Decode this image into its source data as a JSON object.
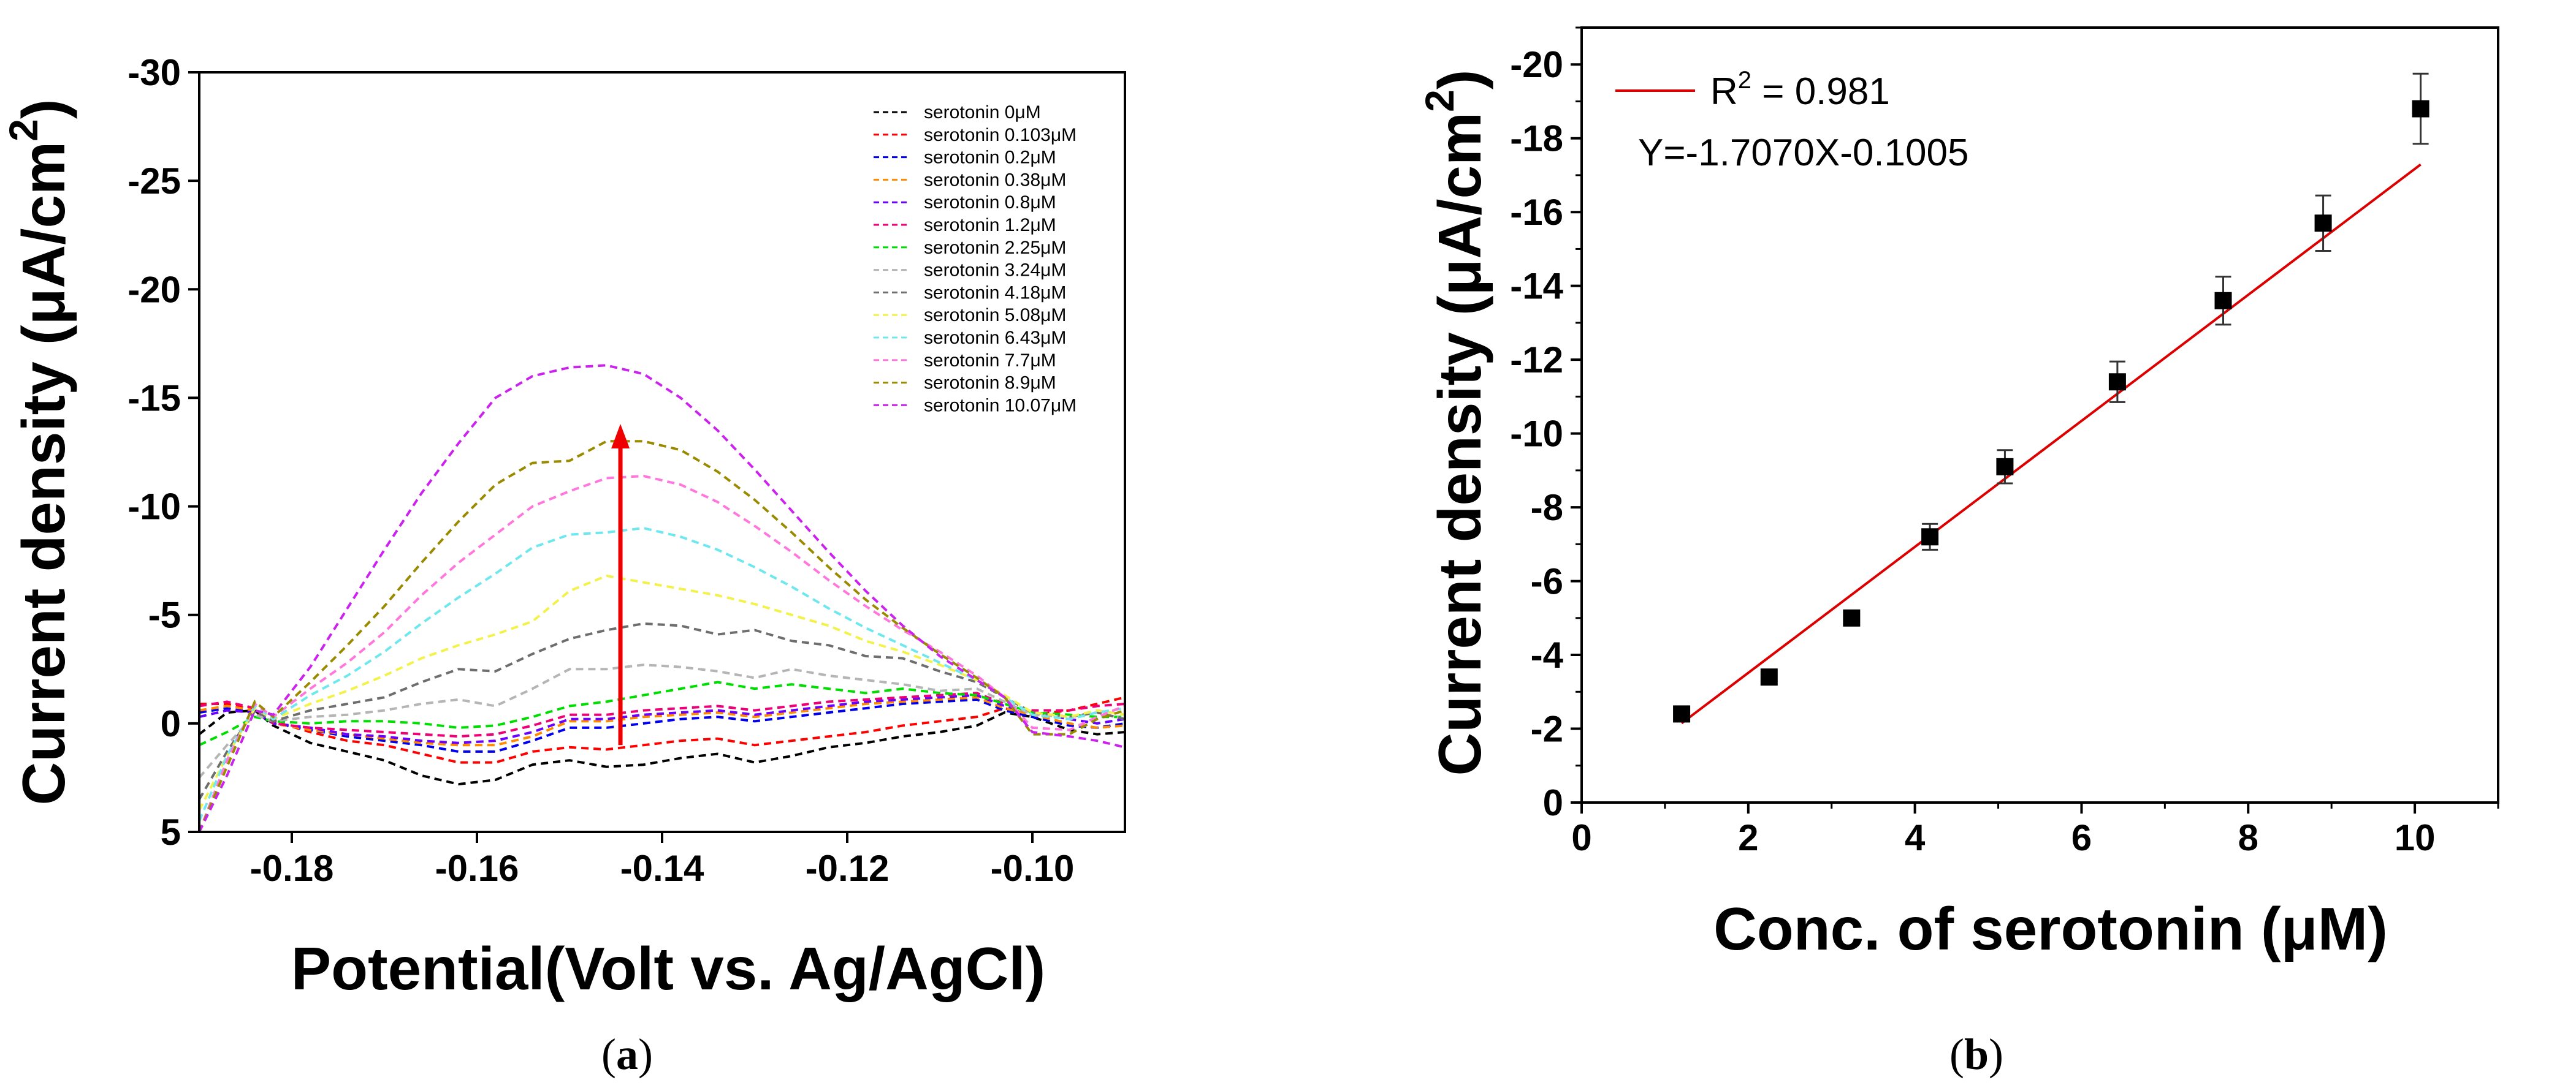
{
  "chart_data": [
    {
      "panel": "a",
      "type": "line",
      "caption_letter": "a",
      "caption": "(a)",
      "xlabel": "Potential(Volt vs. Ag/AgCl)",
      "ylabel": "Current density (μA/cm",
      "ylabel_sup": "2",
      "ylabel_close": ")",
      "xlim": [
        -0.19,
        -0.09
      ],
      "ylim": [
        5,
        -30
      ],
      "y_inverted": true,
      "xticks": [
        -0.18,
        -0.16,
        -0.14,
        -0.12,
        -0.1
      ],
      "xtick_labels": [
        "-0.18",
        "-0.16",
        "-0.14",
        "-0.12",
        "-0.10"
      ],
      "yticks": [
        -30,
        -25,
        -20,
        -15,
        -10,
        -5,
        0,
        5
      ],
      "ytick_labels": [
        "-30",
        "-25",
        "-20",
        "-15",
        "-10",
        "-5",
        "0",
        "5"
      ],
      "legend_position": "top-right",
      "arrow": {
        "x": -0.1445,
        "from": 1,
        "to": -13.8,
        "color": "#ee0000"
      },
      "x": [
        -0.19,
        -0.187,
        -0.184,
        -0.182,
        -0.178,
        -0.174,
        -0.17,
        -0.166,
        -0.162,
        -0.158,
        -0.154,
        -0.15,
        -0.146,
        -0.142,
        -0.138,
        -0.134,
        -0.13,
        -0.126,
        -0.122,
        -0.118,
        -0.114,
        -0.11,
        -0.106,
        -0.103,
        -0.1,
        -0.096,
        -0.093,
        -0.09
      ],
      "series": [
        {
          "name": "serotonin 0μM",
          "color": "#000000",
          "values": [
            0.5,
            -0.5,
            -0.6,
            0.1,
            0.9,
            1.3,
            1.7,
            2.4,
            2.8,
            2.6,
            1.9,
            1.7,
            2.0,
            1.9,
            1.6,
            1.4,
            1.8,
            1.5,
            1.1,
            0.9,
            0.6,
            0.4,
            0.1,
            -0.5,
            -0.3,
            0.3,
            0.5,
            0.4
          ]
        },
        {
          "name": "serotonin 0.103μM",
          "color": "#ff0000",
          "values": [
            -0.9,
            -0.9,
            -0.6,
            -0.1,
            0.4,
            0.8,
            1.0,
            1.4,
            1.8,
            1.8,
            1.3,
            1.1,
            1.2,
            1.0,
            0.8,
            0.7,
            1.0,
            0.8,
            0.6,
            0.4,
            0.1,
            -0.1,
            -0.3,
            -0.7,
            -0.4,
            -0.6,
            -0.9,
            -1.2
          ]
        },
        {
          "name": "serotonin 0.2μM",
          "color": "#0000ee",
          "values": [
            -0.5,
            -0.7,
            -0.5,
            0.0,
            0.3,
            0.6,
            0.8,
            1.0,
            1.3,
            1.3,
            0.8,
            0.2,
            0.2,
            0.0,
            -0.2,
            -0.3,
            -0.1,
            -0.3,
            -0.5,
            -0.7,
            -0.9,
            -1.0,
            -1.1,
            -0.6,
            -0.3,
            0.1,
            0.2,
            0.0
          ]
        },
        {
          "name": "serotonin 0.38μM",
          "color": "#ff8c00",
          "values": [
            -0.6,
            -0.8,
            -0.6,
            0.0,
            0.3,
            0.5,
            0.7,
            0.9,
            1.0,
            1.0,
            0.6,
            -0.1,
            -0.1,
            -0.3,
            -0.4,
            -0.5,
            -0.3,
            -0.5,
            -0.7,
            -0.9,
            -1.0,
            -1.1,
            -1.2,
            -0.7,
            -0.4,
            0.0,
            0.2,
            0.1
          ]
        },
        {
          "name": "serotonin 0.8μM",
          "color": "#6a00ff",
          "values": [
            -0.3,
            -0.6,
            -0.5,
            0.0,
            0.2,
            0.5,
            0.6,
            0.8,
            0.9,
            0.8,
            0.4,
            -0.2,
            -0.2,
            -0.4,
            -0.5,
            -0.6,
            -0.4,
            -0.6,
            -0.8,
            -1.0,
            -1.1,
            -1.2,
            -1.3,
            -0.8,
            -0.5,
            -0.2,
            0.0,
            -0.2
          ]
        },
        {
          "name": "serotonin 1.2μM",
          "color": "#ee0077",
          "values": [
            -0.8,
            -1.0,
            -0.7,
            0.0,
            0.2,
            0.3,
            0.4,
            0.5,
            0.6,
            0.5,
            0.1,
            -0.4,
            -0.4,
            -0.6,
            -0.7,
            -0.8,
            -0.6,
            -0.8,
            -1.0,
            -1.1,
            -1.2,
            -1.3,
            -1.4,
            -0.9,
            -0.6,
            -0.6,
            -0.8,
            -0.9
          ]
        },
        {
          "name": "serotonin 2.25μM",
          "color": "#00dd00",
          "values": [
            1.0,
            0.4,
            -0.3,
            -0.1,
            0.0,
            -0.1,
            -0.1,
            0.0,
            0.2,
            0.1,
            -0.3,
            -0.8,
            -1.0,
            -1.3,
            -1.6,
            -1.9,
            -1.6,
            -1.8,
            -1.6,
            -1.4,
            -1.6,
            -1.4,
            -1.3,
            -0.9,
            -0.5,
            -0.4,
            -0.3,
            -0.3
          ]
        },
        {
          "name": "serotonin 3.24μM",
          "color": "#b5b5b5",
          "values": [
            2.5,
            1.0,
            -0.4,
            -0.1,
            -0.3,
            -0.4,
            -0.6,
            -0.9,
            -1.1,
            -0.8,
            -1.6,
            -2.5,
            -2.5,
            -2.7,
            -2.6,
            -2.4,
            -2.1,
            -2.5,
            -2.2,
            -2.0,
            -1.8,
            -1.5,
            -1.6,
            -1.0,
            -0.4,
            -0.3,
            -0.5,
            -0.2
          ]
        },
        {
          "name": "serotonin 4.18μM",
          "color": "#6e6e6e",
          "values": [
            3.5,
            1.3,
            -0.6,
            -0.1,
            -0.6,
            -0.9,
            -1.2,
            -1.9,
            -2.5,
            -2.4,
            -3.2,
            -3.9,
            -4.3,
            -4.6,
            -4.5,
            -4.1,
            -4.3,
            -3.8,
            -3.6,
            -3.1,
            -3.0,
            -2.4,
            -1.9,
            -1.2,
            -0.5,
            -0.3,
            -0.5,
            -0.2
          ]
        },
        {
          "name": "serotonin 5.08μM",
          "color": "#f2f24a",
          "values": [
            4.0,
            1.5,
            -0.7,
            -0.2,
            -0.9,
            -1.5,
            -2.2,
            -3.0,
            -3.6,
            -4.1,
            -4.7,
            -6.1,
            -6.8,
            -6.5,
            -6.2,
            -5.9,
            -5.5,
            -5.0,
            -4.5,
            -3.8,
            -3.3,
            -2.7,
            -2.0,
            -1.3,
            -0.5,
            -0.3,
            -0.6,
            -0.4
          ]
        },
        {
          "name": "serotonin 6.43μM",
          "color": "#6ee8ee",
          "values": [
            4.5,
            1.5,
            -0.8,
            -0.2,
            -1.3,
            -2.2,
            -3.3,
            -4.6,
            -5.8,
            -6.9,
            -8.1,
            -8.7,
            -8.8,
            -9.0,
            -8.6,
            -8.0,
            -7.2,
            -6.3,
            -5.3,
            -4.4,
            -3.6,
            -2.8,
            -2.0,
            -1.2,
            -0.4,
            -0.2,
            -0.5,
            -0.7
          ]
        },
        {
          "name": "serotonin 7.7μM",
          "color": "#ff77dd",
          "values": [
            5.0,
            1.7,
            -0.9,
            -0.3,
            -1.6,
            -2.8,
            -4.2,
            -5.9,
            -7.4,
            -8.7,
            -10.0,
            -10.7,
            -11.3,
            -11.4,
            -11.0,
            -10.2,
            -9.1,
            -7.9,
            -6.6,
            -5.4,
            -4.3,
            -3.3,
            -2.2,
            -1.2,
            0.2,
            0.3,
            -0.3,
            -0.8
          ]
        },
        {
          "name": "serotonin 8.9μM",
          "color": "#9a8a00",
          "values": [
            5.0,
            2.0,
            -1.0,
            -0.3,
            -1.9,
            -3.6,
            -5.4,
            -7.4,
            -9.3,
            -11.0,
            -12.0,
            -12.1,
            -13.0,
            -13.0,
            -12.6,
            -11.6,
            -10.3,
            -8.8,
            -7.2,
            -5.7,
            -4.4,
            -3.2,
            -2.1,
            -1.2,
            0.5,
            0.5,
            -0.2,
            -0.6
          ]
        },
        {
          "name": "serotonin 10.07μM",
          "color": "#cc22ee",
          "values": [
            5.0,
            2.4,
            -0.6,
            -0.4,
            -2.6,
            -5.3,
            -8.0,
            -10.6,
            -12.9,
            -15.0,
            -16.0,
            -16.4,
            -16.5,
            -16.1,
            -15.0,
            -13.5,
            -11.7,
            -9.8,
            -7.9,
            -6.1,
            -4.5,
            -3.1,
            -2.0,
            -1.2,
            0.4,
            0.6,
            0.8,
            1.1
          ]
        }
      ]
    },
    {
      "panel": "b",
      "type": "scatter",
      "caption_letter": "b",
      "caption": "(b)",
      "xlabel": "Conc. of serotonin (μM)",
      "ylabel": "Current density (μA/cm",
      "ylabel_sup": "2",
      "ylabel_close": ")",
      "xlim": [
        0,
        11
      ],
      "ylim": [
        0,
        -21
      ],
      "y_inverted": true,
      "xticks": [
        0,
        2,
        4,
        6,
        8,
        10
      ],
      "xtick_labels": [
        "0",
        "2",
        "4",
        "6",
        "8",
        "10"
      ],
      "yticks": [
        0,
        -2,
        -4,
        -6,
        -8,
        -10,
        -12,
        -14,
        -16,
        -18,
        -20
      ],
      "ytick_labels": [
        "0",
        "-2",
        "-4",
        "-6",
        "-8",
        "-10",
        "-12",
        "-14",
        "-16",
        "-18",
        "-20"
      ],
      "points": [
        {
          "x": 1.2,
          "y": -2.4,
          "err": 0.15
        },
        {
          "x": 2.25,
          "y": -3.4,
          "err": 0.15
        },
        {
          "x": 3.24,
          "y": -5.0,
          "err": 0.2
        },
        {
          "x": 4.18,
          "y": -7.2,
          "err": 0.35
        },
        {
          "x": 5.08,
          "y": -9.1,
          "err": 0.45
        },
        {
          "x": 6.43,
          "y": -11.4,
          "err": 0.55
        },
        {
          "x": 7.7,
          "y": -13.6,
          "err": 0.65
        },
        {
          "x": 8.9,
          "y": -15.7,
          "err": 0.75
        },
        {
          "x": 10.07,
          "y": -18.8,
          "err": 0.95
        }
      ],
      "fit": {
        "slope": -1.707,
        "intercept": -0.1005,
        "x_start": 1.2,
        "x_end": 10.07,
        "color": "#dd0000"
      },
      "legend": {
        "r2_prefix": "R",
        "r2_sup": "2",
        "r2_value": " = 0.981",
        "equation": "Y=-1.7070X-0.1005"
      }
    }
  ]
}
